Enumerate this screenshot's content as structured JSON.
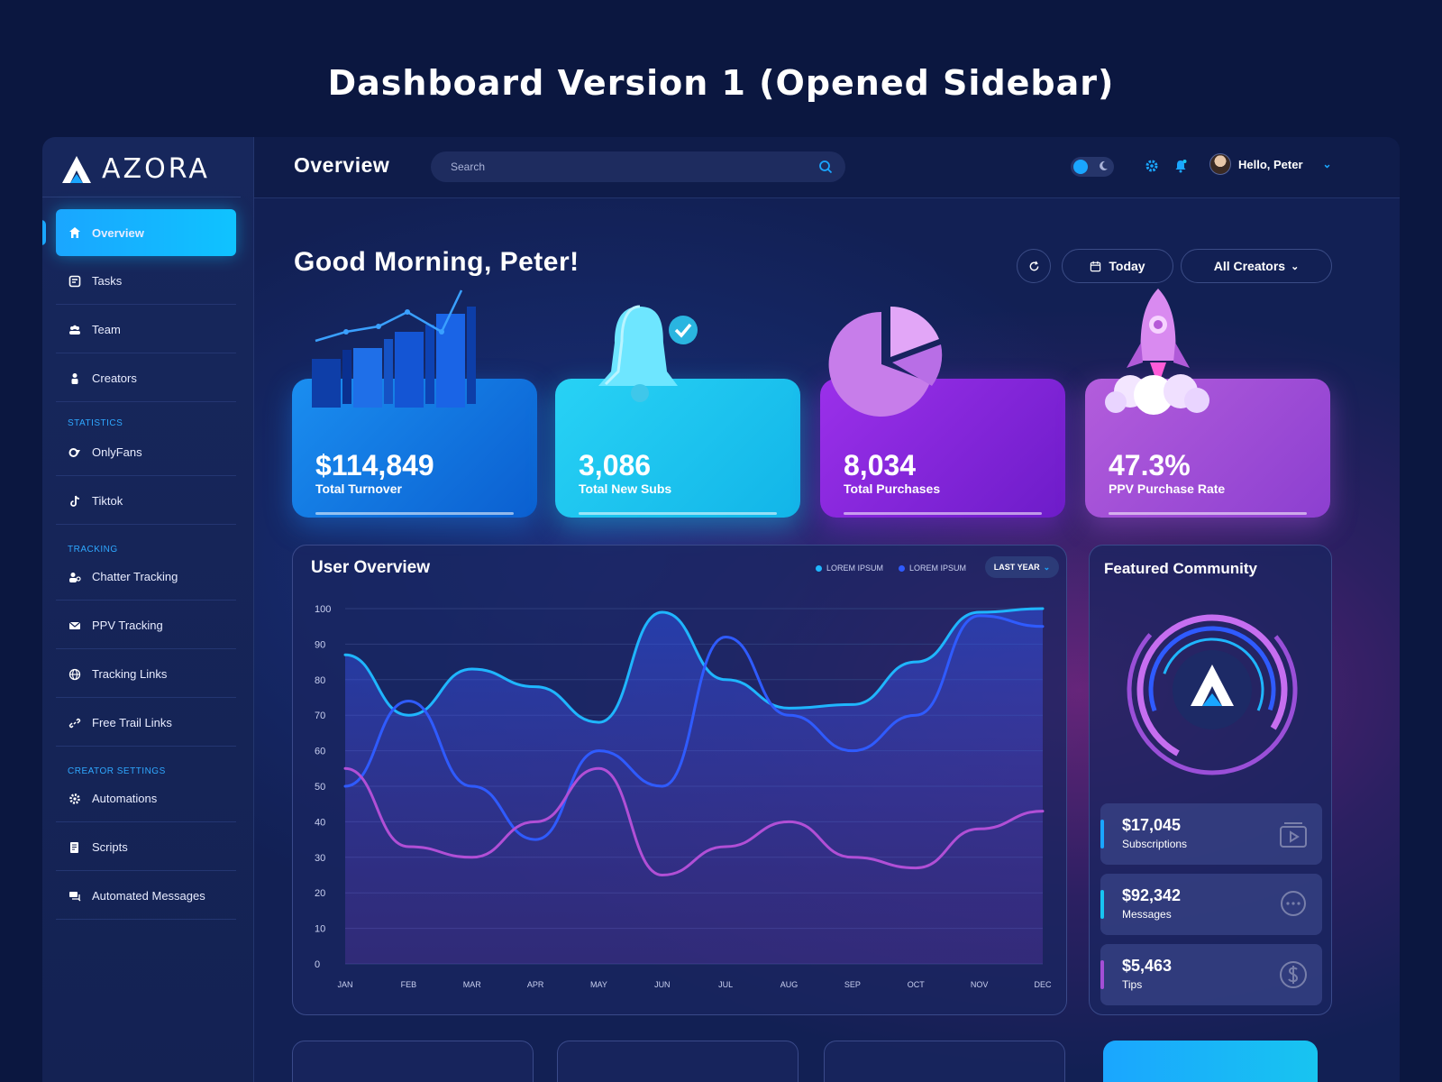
{
  "headline": "Dashboard Version 1 (Opened Sidebar)",
  "app": {
    "brand": "AZORA"
  },
  "sidebar": {
    "items": [
      {
        "label": "Overview",
        "icon": "home-icon"
      },
      {
        "label": "Tasks",
        "icon": "tasks-icon"
      },
      {
        "label": "Team",
        "icon": "team-icon"
      },
      {
        "label": "Creators",
        "icon": "creators-icon"
      }
    ],
    "sections": [
      {
        "title": "STATISTICS",
        "items": [
          {
            "label": "OnlyFans",
            "icon": "onlyfans-icon"
          },
          {
            "label": "Tiktok",
            "icon": "tiktok-icon"
          }
        ]
      },
      {
        "title": "TRACKING",
        "items": [
          {
            "label": "Chatter Tracking",
            "icon": "chatter-icon"
          },
          {
            "label": "PPV Tracking",
            "icon": "mail-icon"
          },
          {
            "label": "Tracking Links",
            "icon": "globe-icon"
          },
          {
            "label": "Free Trail Links",
            "icon": "link-icon"
          }
        ]
      },
      {
        "title": "CREATOR SETTINGS",
        "items": [
          {
            "label": "Automations",
            "icon": "gear-icon"
          },
          {
            "label": "Scripts",
            "icon": "script-icon"
          },
          {
            "label": "Automated Messages",
            "icon": "messages-icon"
          }
        ]
      }
    ]
  },
  "topbar": {
    "title": "Overview",
    "search_placeholder": "Search",
    "greeting_user": "Hello, Peter"
  },
  "main": {
    "greeting": "Good Morning, Peter!",
    "today_label": "Today",
    "creators_label": "All Creators"
  },
  "stats": [
    {
      "value": "$114,849",
      "label": "Total Turnover",
      "color": "#1a7fe6"
    },
    {
      "value": "3,086",
      "label": "Total New Subs",
      "color": "#18c4f0"
    },
    {
      "value": "8,034",
      "label": "Total Purchases",
      "color": "#8a2be2"
    },
    {
      "value": "47.3%",
      "label": "PPV Purchase Rate",
      "color": "#a34fd6"
    }
  ],
  "chart": {
    "title": "User Overview",
    "legend": [
      "LOREM IPSUM",
      "LOREM IPSUM"
    ],
    "range_label": "LAST YEAR"
  },
  "chart_data": {
    "type": "line",
    "x": [
      "JAN",
      "FEB",
      "MAR",
      "APR",
      "MAY",
      "JUN",
      "JUL",
      "AUG",
      "SEP",
      "OCT",
      "NOV",
      "DEC"
    ],
    "ylim": [
      0,
      100
    ],
    "yticks": [
      0,
      10,
      20,
      30,
      40,
      50,
      60,
      70,
      80,
      90,
      100
    ],
    "series": [
      {
        "color": "#1fb6ff",
        "values": [
          87,
          70,
          83,
          78,
          68,
          99,
          80,
          72,
          73,
          85,
          99,
          100
        ]
      },
      {
        "color": "#2f5bff",
        "values": [
          50,
          74,
          50,
          35,
          60,
          50,
          92,
          70,
          60,
          70,
          98,
          95
        ]
      },
      {
        "color": "#b14fd6",
        "values": [
          55,
          33,
          30,
          40,
          55,
          25,
          33,
          40,
          30,
          27,
          38,
          43
        ]
      }
    ],
    "grid": true
  },
  "community": {
    "title": "Featured Community",
    "rows": [
      {
        "value": "$17,045",
        "label": "Subscriptions",
        "accent": "#1aa6ff",
        "icon": "video-icon"
      },
      {
        "value": "$92,342",
        "label": "Messages",
        "accent": "#18c4f0",
        "icon": "chat-icon"
      },
      {
        "value": "$5,463",
        "label": "Tips",
        "accent": "#a34fd6",
        "icon": "dollar-icon"
      }
    ]
  }
}
